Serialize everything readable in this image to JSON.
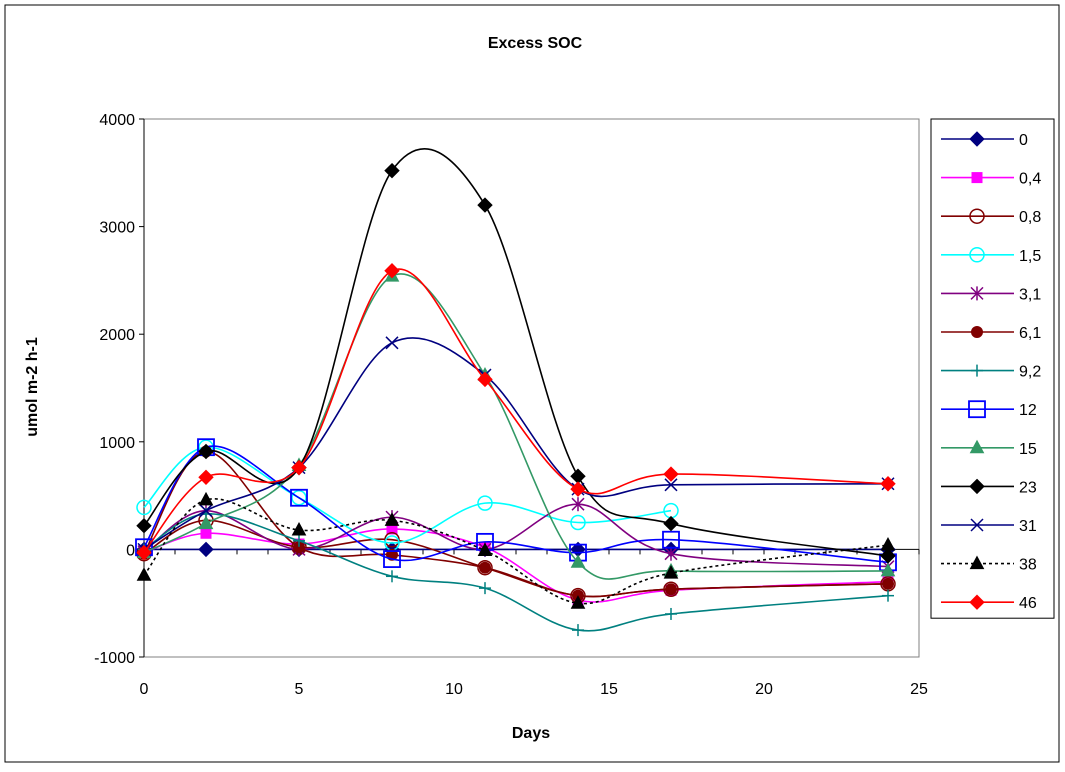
{
  "chart_data": {
    "type": "line",
    "title": "Excess SOC",
    "xlabel": "Days",
    "ylabel": "umol m-2 h-1",
    "xlim": [
      0,
      25
    ],
    "ylim": [
      -1000,
      4000
    ],
    "x_ticks": [
      0,
      5,
      10,
      15,
      20,
      25
    ],
    "y_ticks": [
      -1000,
      0,
      1000,
      2000,
      3000,
      4000
    ],
    "plot_area_color": "#ffffff",
    "legend_position": "right",
    "x": [
      0,
      2,
      5,
      8,
      11,
      14,
      17,
      24
    ],
    "series": [
      {
        "name": "0",
        "color": "#000080",
        "marker": "diamond",
        "dash": false,
        "values": [
          0,
          0,
          0,
          0,
          0,
          0,
          0,
          0
        ]
      },
      {
        "name": "0,4",
        "color": "#ff00ff",
        "marker": "square",
        "dash": false,
        "values": [
          -30,
          150,
          50,
          190,
          20,
          -470,
          -380,
          -300
        ]
      },
      {
        "name": "0,8",
        "color": "#800000",
        "marker": "circle-open",
        "dash": false,
        "values": [
          -40,
          270,
          20,
          90,
          -170,
          -430,
          -370,
          -320
        ]
      },
      {
        "name": "1,5",
        "color": "#00ffff",
        "marker": "circle-open",
        "dash": false,
        "values": [
          390,
          950,
          480,
          60,
          430,
          250,
          360,
          null
        ]
      },
      {
        "name": "3,1",
        "color": "#800080",
        "marker": "star",
        "dash": false,
        "values": [
          -20,
          360,
          0,
          300,
          0,
          420,
          -40,
          -160
        ]
      },
      {
        "name": "6,1",
        "color": "#800000",
        "marker": "circle",
        "dash": false,
        "values": [
          -40,
          910,
          20,
          -50,
          -170,
          -430,
          -370,
          -320
        ]
      },
      {
        "name": "9,2",
        "color": "#008080",
        "marker": "plus",
        "dash": false,
        "values": [
          0,
          330,
          80,
          -250,
          -360,
          -750,
          -600,
          -430
        ]
      },
      {
        "name": "12",
        "color": "#0000ff",
        "marker": "square-open",
        "dash": false,
        "values": [
          20,
          950,
          480,
          -90,
          70,
          -30,
          90,
          -120
        ]
      },
      {
        "name": "15",
        "color": "#339966",
        "marker": "triangle",
        "dash": false,
        "values": [
          -30,
          240,
          780,
          2540,
          1620,
          -120,
          -200,
          -200
        ]
      },
      {
        "name": "23",
        "color": "#000000",
        "marker": "diamond",
        "dash": false,
        "values": [
          220,
          910,
          760,
          3520,
          3200,
          680,
          240,
          -60
        ]
      },
      {
        "name": "31",
        "color": "#000080",
        "marker": "x",
        "dash": false,
        "values": [
          0,
          360,
          760,
          1920,
          1620,
          560,
          600,
          610
        ]
      },
      {
        "name": "38",
        "color": "#000000",
        "marker": "triangle",
        "dash": true,
        "values": [
          -240,
          460,
          180,
          270,
          -10,
          -500,
          -220,
          40
        ]
      },
      {
        "name": "46",
        "color": "#ff0000",
        "marker": "diamond",
        "dash": false,
        "values": [
          -30,
          670,
          760,
          2590,
          1580,
          560,
          700,
          610
        ]
      }
    ]
  }
}
